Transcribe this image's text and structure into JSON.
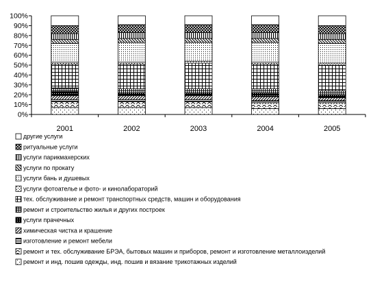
{
  "chart_data": {
    "type": "bar",
    "stacked": "percent",
    "categories": [
      "2001",
      "2002",
      "2003",
      "2004",
      "2005"
    ],
    "y_ticks": [
      "0%",
      "10%",
      "20%",
      "30%",
      "40%",
      "50%",
      "60%",
      "70%",
      "80%",
      "90%",
      "100%"
    ],
    "ylim": [
      0,
      100
    ],
    "grid": false,
    "legend_position": "bottom",
    "series": [
      {
        "name": "ремонт и инд. пошив одежды, инд. пошив и вязание трикотажных изделий",
        "pattern": "sparse-dots",
        "values": [
          7,
          7,
          7,
          6,
          6
        ]
      },
      {
        "name": "ремонт и тех. обслуживание БРЭА, бытовых машин и приборов, ремонт и изготовление металлоизделий",
        "pattern": "waves",
        "values": [
          6,
          6,
          6,
          6,
          6
        ]
      },
      {
        "name": "изготовление и ремонт мебели",
        "pattern": "horizontal",
        "values": [
          2,
          2,
          2,
          2,
          2
        ]
      },
      {
        "name": "химическая чистка и крашение",
        "pattern": "diagonal-up",
        "values": [
          4,
          4,
          4,
          4,
          3
        ]
      },
      {
        "name": "услуги прачечных",
        "pattern": "dark",
        "values": [
          4,
          3,
          3,
          4,
          3
        ]
      },
      {
        "name": "ремонт и строительство жилья и других построек",
        "pattern": "grid",
        "values": [
          4,
          4,
          4,
          4,
          4
        ]
      },
      {
        "name": "тех. обслуживание и ремонт транспортных средств, машин и оборудования",
        "pattern": "large-grid",
        "values": [
          24,
          25,
          26,
          25,
          26
        ]
      },
      {
        "name": "услуги фотоателье и фото- и кинолабораторий",
        "pattern": "small-dots",
        "values": [
          2,
          2,
          2,
          2,
          2
        ]
      },
      {
        "name": "услуги бань и душевых",
        "pattern": "dense-dots",
        "values": [
          19,
          20,
          19,
          20,
          20
        ]
      },
      {
        "name": "услуги по прокату",
        "pattern": "diagonal-down",
        "values": [
          4,
          4,
          4,
          4,
          4
        ]
      },
      {
        "name": "услуги парикмахерских",
        "pattern": "vertical",
        "values": [
          6,
          6,
          6,
          6,
          6
        ]
      },
      {
        "name": "ритуальные услуги",
        "pattern": "crosshatch",
        "values": [
          8,
          8,
          8,
          8,
          8
        ]
      },
      {
        "name": "другие услуги",
        "pattern": "white",
        "values": [
          10,
          9,
          9,
          9,
          10
        ]
      }
    ]
  }
}
